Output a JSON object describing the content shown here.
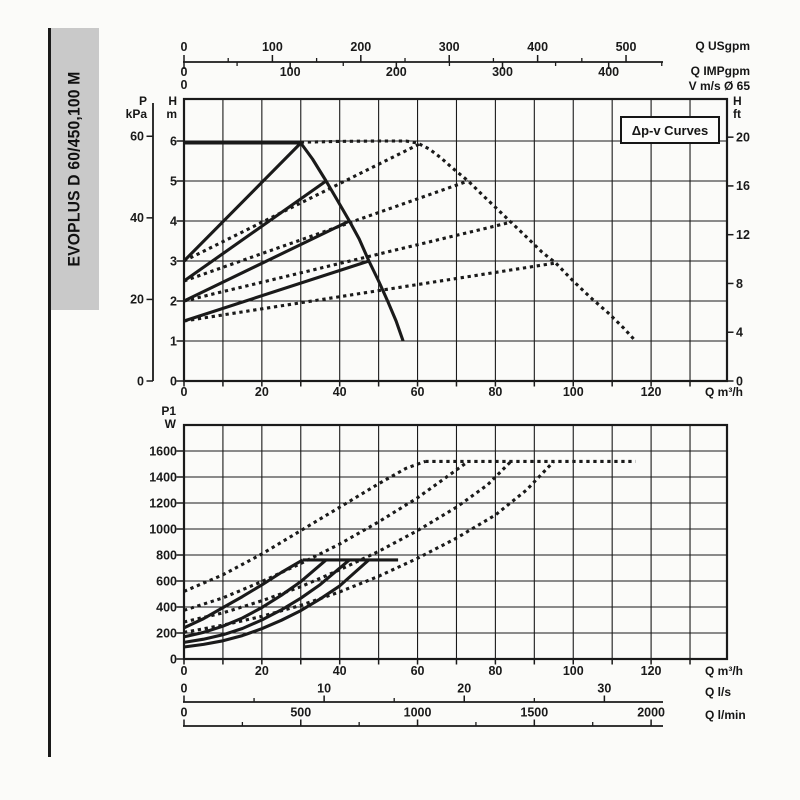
{
  "page": {
    "background": "#fbfbf9",
    "ink": "#1a1a1a",
    "grid_color": "#2b2b2b",
    "tab_gray": "#c9c9c9"
  },
  "sidebar": {
    "model": "EVOPLUS D 60/450,100 M"
  },
  "chart_data": [
    {
      "id": "head-flow",
      "type": "line",
      "title": "Δp-v Curves",
      "grid": true,
      "x_axis": {
        "unit": "Q m³/h",
        "min": 0,
        "max": 139.5,
        "grid_step": 10,
        "tick_step": 10,
        "labels": [
          0,
          20,
          40,
          60,
          80,
          100,
          120
        ]
      },
      "y_left": {
        "l1": "H",
        "l2": "m",
        "min": 0,
        "max": 7,
        "ticks": [
          0,
          1,
          2,
          3,
          4,
          5,
          6
        ]
      },
      "y_kpa": {
        "l1": "P",
        "l2": "kPa",
        "ticks": [
          0,
          20,
          40,
          60
        ],
        "kpa_per_m": 9.80665
      },
      "y_right": {
        "l1": "H",
        "l2": "ft",
        "ticks": [
          0,
          4,
          8,
          12,
          16,
          20
        ],
        "m_per_ft": 0.3048
      },
      "top_rulers": {
        "usgpm": {
          "label": "Q USgpm",
          "m3h_per_unit": 0.22712,
          "major": [
            0,
            100,
            200,
            300,
            400,
            500
          ],
          "minor": [
            50,
            150,
            250,
            350,
            450
          ]
        },
        "impgpm": {
          "label": "Q IMPgpm",
          "m3h_per_unit": 0.27276,
          "major": [
            0,
            100,
            200,
            300,
            400
          ],
          "minor": [
            50,
            150,
            250,
            350,
            450
          ]
        },
        "v": {
          "label": "V m/s Ø 65",
          "ticks": [
            0
          ]
        }
      },
      "series": [
        {
          "name": "max-speed-single",
          "style": "solid",
          "points": [
            [
              0,
              5.95
            ],
            [
              30,
              5.95
            ],
            [
              33,
              5.55
            ],
            [
              36.5,
              5.0
            ],
            [
              39.5,
              4.5
            ],
            [
              42.5,
              4.0
            ],
            [
              45,
              3.55
            ],
            [
              47.5,
              3.0
            ],
            [
              50,
              2.5
            ],
            [
              52.3,
              2.0
            ],
            [
              54.5,
              1.5
            ],
            [
              56.3,
              1.0
            ]
          ]
        },
        {
          "name": "dpv-6m-single",
          "style": "solid",
          "points": [
            [
              0,
              3.0
            ],
            [
              30,
              5.95
            ]
          ]
        },
        {
          "name": "dpv-5m-single",
          "style": "solid",
          "points": [
            [
              0,
              2.5
            ],
            [
              36.5,
              5.0
            ]
          ]
        },
        {
          "name": "dpv-4m-single",
          "style": "solid",
          "points": [
            [
              0,
              2.0
            ],
            [
              42.5,
              4.0
            ]
          ]
        },
        {
          "name": "dpv-3m-single",
          "style": "solid",
          "points": [
            [
              0,
              1.5
            ],
            [
              47.5,
              3.0
            ]
          ]
        },
        {
          "name": "max-speed-parallel",
          "style": "dotted",
          "points": [
            [
              30,
              5.97
            ],
            [
              40,
              5.99
            ],
            [
              50,
              6.0
            ],
            [
              57,
              6.0
            ],
            [
              60,
              5.95
            ],
            [
              63,
              5.8
            ],
            [
              66,
              5.58
            ],
            [
              69,
              5.32
            ],
            [
              73,
              5.0
            ],
            [
              77,
              4.62
            ],
            [
              81,
              4.25
            ],
            [
              84,
              3.97
            ],
            [
              88,
              3.6
            ],
            [
              92,
              3.22
            ],
            [
              95.5,
              2.95
            ],
            [
              100,
              2.5
            ],
            [
              104.5,
              2.08
            ],
            [
              109,
              1.7
            ],
            [
              113,
              1.32
            ],
            [
              116,
              1.0
            ]
          ]
        },
        {
          "name": "dpv-6m-parallel",
          "style": "dotted",
          "points": [
            [
              0,
              3.0
            ],
            [
              61,
              5.95
            ]
          ]
        },
        {
          "name": "dpv-5m-parallel",
          "style": "dotted",
          "points": [
            [
              0,
              2.5
            ],
            [
              73,
              5.0
            ]
          ]
        },
        {
          "name": "dpv-4m-parallel",
          "style": "dotted",
          "points": [
            [
              0,
              2.0
            ],
            [
              84,
              3.97
            ]
          ]
        },
        {
          "name": "dpv-3m-parallel",
          "style": "dotted",
          "points": [
            [
              0,
              1.5
            ],
            [
              95.5,
              2.95
            ]
          ]
        }
      ]
    },
    {
      "id": "power-flow",
      "type": "line",
      "grid": true,
      "x_axis": {
        "unit": "Q m³/h",
        "min": 0,
        "max": 139.5,
        "grid_step": 10,
        "tick_step": 10,
        "labels": [
          0,
          20,
          40,
          60,
          80,
          100,
          120
        ]
      },
      "y_left": {
        "l1": "P1",
        "l2": "W",
        "min": 0,
        "max": 1800,
        "ticks": [
          0,
          200,
          400,
          600,
          800,
          1000,
          1200,
          1400,
          1600
        ]
      },
      "bottom_rulers": {
        "ls": {
          "label": "Q l/s",
          "m3h_per_unit": 3.6,
          "major": [
            0,
            10,
            20,
            30
          ],
          "minor": [
            5,
            15,
            25
          ]
        },
        "lmin": {
          "label": "Q l/min",
          "m3h_per_unit": 0.06,
          "major": [
            0,
            500,
            1000,
            1500,
            2000
          ],
          "minor": [
            250,
            750,
            1250,
            1750
          ]
        }
      },
      "series": [
        {
          "name": "power-max-single",
          "style": "solid",
          "points": [
            [
              30.5,
              762
            ],
            [
              55,
              762
            ]
          ]
        },
        {
          "name": "power-6m-single",
          "style": "solid",
          "points": [
            [
              0,
              240
            ],
            [
              5,
              310
            ],
            [
              10,
              395
            ],
            [
              15,
              480
            ],
            [
              20,
              570
            ],
            [
              25,
              665
            ],
            [
              30.5,
              762
            ]
          ]
        },
        {
          "name": "power-5m-single",
          "style": "solid",
          "points": [
            [
              0,
              170
            ],
            [
              5,
              205
            ],
            [
              10,
              252
            ],
            [
              15,
              315
            ],
            [
              20,
              395
            ],
            [
              25,
              490
            ],
            [
              30,
              595
            ],
            [
              36.5,
              762
            ]
          ]
        },
        {
          "name": "power-4m-single",
          "style": "solid",
          "points": [
            [
              0,
              128
            ],
            [
              5,
              152
            ],
            [
              10,
              186
            ],
            [
              15,
              235
            ],
            [
              20,
              300
            ],
            [
              25,
              378
            ],
            [
              30,
              468
            ],
            [
              35,
              572
            ],
            [
              42.5,
              762
            ]
          ]
        },
        {
          "name": "power-3m-single",
          "style": "solid",
          "points": [
            [
              0,
              92
            ],
            [
              5,
              112
            ],
            [
              10,
              140
            ],
            [
              15,
              180
            ],
            [
              20,
              233
            ],
            [
              25,
              298
            ],
            [
              30,
              372
            ],
            [
              35,
              462
            ],
            [
              40,
              562
            ],
            [
              47.5,
              762
            ]
          ]
        },
        {
          "name": "power-max-parallel",
          "style": "dotted",
          "points": [
            [
              62,
              1520
            ],
            [
              116,
              1520
            ]
          ]
        },
        {
          "name": "power-6m-parallel",
          "style": "dotted",
          "points": [
            [
              0,
              520
            ],
            [
              10,
              648
            ],
            [
              20,
              808
            ],
            [
              30,
              988
            ],
            [
              40,
              1168
            ],
            [
              50,
              1348
            ],
            [
              57,
              1466
            ],
            [
              62,
              1520
            ]
          ]
        },
        {
          "name": "power-5m-parallel",
          "style": "dotted",
          "points": [
            [
              0,
              375
            ],
            [
              10,
              470
            ],
            [
              20,
              595
            ],
            [
              30,
              735
            ],
            [
              40,
              885
            ],
            [
              50,
              1055
            ],
            [
              60,
              1240
            ],
            [
              67,
              1390
            ],
            [
              73,
              1520
            ]
          ]
        },
        {
          "name": "power-4m-parallel",
          "style": "dotted",
          "points": [
            [
              0,
              285
            ],
            [
              10,
              355
            ],
            [
              20,
              448
            ],
            [
              30,
              556
            ],
            [
              40,
              686
            ],
            [
              50,
              828
            ],
            [
              60,
              988
            ],
            [
              70,
              1168
            ],
            [
              78,
              1340
            ],
            [
              84,
              1520
            ]
          ]
        },
        {
          "name": "power-3m-parallel",
          "style": "dotted",
          "points": [
            [
              0,
              205
            ],
            [
              10,
              260
            ],
            [
              20,
              328
            ],
            [
              30,
              413
            ],
            [
              40,
              516
            ],
            [
              50,
              636
            ],
            [
              60,
              775
            ],
            [
              70,
              930
            ],
            [
              80,
              1108
            ],
            [
              88,
              1300
            ],
            [
              95,
              1520
            ]
          ]
        }
      ]
    }
  ]
}
